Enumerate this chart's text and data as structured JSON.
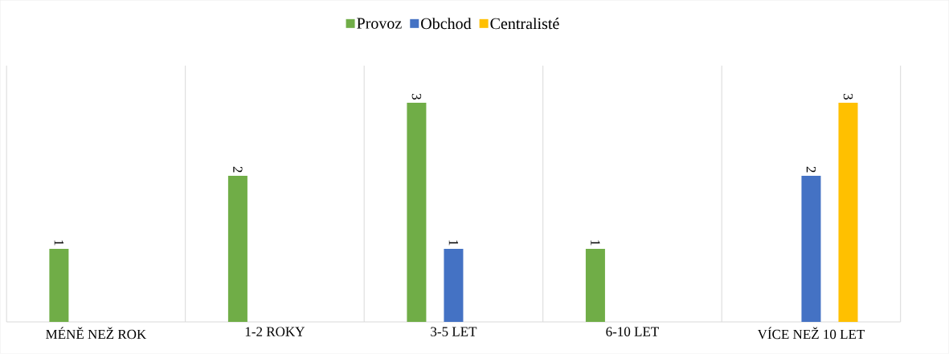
{
  "chart_data": {
    "type": "bar",
    "categories": [
      "MÉNĚ NEŽ ROK",
      "1-2 ROKY",
      "3-5 LET",
      "6-10 LET",
      "VÍCE NEŽ 10 LET"
    ],
    "series": [
      {
        "name": "Provoz",
        "color": "#70ad47",
        "values": [
          1,
          2,
          3,
          1,
          null
        ]
      },
      {
        "name": "Obchod",
        "color": "#4472c4",
        "values": [
          null,
          null,
          1,
          null,
          2
        ]
      },
      {
        "name": "Centralisté",
        "color": "#ffc000",
        "values": [
          null,
          null,
          null,
          null,
          3
        ]
      }
    ],
    "data_labels": true,
    "legend": "top",
    "grid": "x"
  }
}
